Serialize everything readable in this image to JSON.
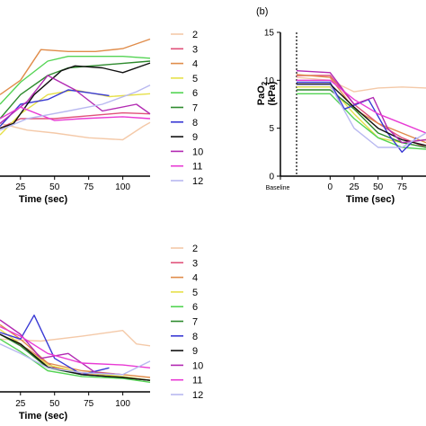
{
  "series_colors": {
    "2": "#f4c9a8",
    "3": "#e0507a",
    "4": "#e08c4a",
    "5": "#e6e04a",
    "6": "#54d454",
    "7": "#2e8a2e",
    "8": "#3a3ad4",
    "9": "#111111",
    "10": "#b22ab2",
    "11": "#e83ad4",
    "12": "#b8b8f0"
  },
  "chart_data": [
    {
      "type": "line",
      "panel": "top-left",
      "xlabel": "Time (sec)",
      "xticks": [
        "25",
        "50",
        "75",
        "100"
      ],
      "xlim": [
        10,
        120
      ],
      "ylim": [
        0,
        15
      ],
      "legend": [
        "2",
        "3",
        "4",
        "5",
        "6",
        "7",
        "8",
        "9",
        "10",
        "11",
        "12"
      ],
      "legend_position": "right",
      "series": [
        {
          "name": "2",
          "x": [
            10,
            30,
            50,
            75,
            100,
            115,
            120
          ],
          "y": [
            5.5,
            4.8,
            4.5,
            4.0,
            3.8,
            5.2,
            5.6
          ]
        },
        {
          "name": "3",
          "x": [
            10,
            25,
            50,
            75,
            100,
            120
          ],
          "y": [
            5.0,
            6.0,
            6.0,
            6.3,
            6.6,
            6.5
          ]
        },
        {
          "name": "4",
          "x": [
            10,
            25,
            40,
            60,
            80,
            100,
            120
          ],
          "y": [
            8.5,
            10.0,
            13.2,
            13.0,
            13.0,
            13.3,
            14.3
          ]
        },
        {
          "name": "5",
          "x": [
            10,
            25,
            45,
            65,
            90,
            120
          ],
          "y": [
            4.3,
            6.5,
            8.5,
            9.0,
            8.3,
            8.6
          ]
        },
        {
          "name": "6",
          "x": [
            10,
            25,
            45,
            60,
            75,
            100,
            120
          ],
          "y": [
            7.5,
            9.8,
            12.0,
            12.5,
            12.5,
            12.5,
            12.3
          ]
        },
        {
          "name": "7",
          "x": [
            10,
            25,
            45,
            60,
            120
          ],
          "y": [
            6.0,
            8.5,
            10.5,
            11.3,
            12.0
          ]
        },
        {
          "name": "8",
          "x": [
            10,
            25,
            45,
            60,
            75,
            90
          ],
          "y": [
            5.2,
            7.5,
            8.0,
            9.0,
            8.7,
            8.4
          ]
        },
        {
          "name": "9",
          "x": [
            10,
            20,
            35,
            55,
            65,
            85,
            100,
            120
          ],
          "y": [
            5.0,
            5.5,
            8.5,
            11.0,
            11.5,
            11.3,
            10.8,
            11.8
          ]
        },
        {
          "name": "10",
          "x": [
            10,
            30,
            45,
            65,
            85,
            110,
            120
          ],
          "y": [
            5.5,
            7.8,
            10.5,
            9.0,
            6.8,
            7.5,
            6.5
          ]
        },
        {
          "name": "11",
          "x": [
            10,
            25,
            50,
            70,
            100,
            120
          ],
          "y": [
            6.0,
            7.2,
            5.8,
            6.0,
            6.2,
            6.0
          ]
        },
        {
          "name": "12",
          "x": [
            10,
            30,
            60,
            85,
            110,
            120
          ],
          "y": [
            4.8,
            6.0,
            6.8,
            7.5,
            8.8,
            9.5
          ]
        }
      ]
    },
    {
      "type": "line",
      "panel": "top-right",
      "panel_label": "(b)",
      "ylabel": "PaO",
      "ylabel_subscript": "2",
      "ylabel_unit": "(kPa)",
      "xlabel": "Time (sec)",
      "xticks": [
        "Baseline",
        "0",
        "25",
        "50",
        "75"
      ],
      "yticks": [
        "0",
        "5",
        "10",
        "15"
      ],
      "xlim": [
        -35,
        100
      ],
      "ylim": [
        0,
        15
      ],
      "baseline_marker_x": 0,
      "series": [
        {
          "name": "2",
          "x": [
            -35,
            0,
            25,
            50,
            75,
            100
          ],
          "y": [
            10.3,
            10.0,
            8.8,
            9.2,
            9.3,
            9.2
          ]
        },
        {
          "name": "3",
          "x": [
            -35,
            0,
            25,
            50,
            75,
            100
          ],
          "y": [
            10.5,
            10.5,
            7.5,
            5.5,
            4.0,
            3.0
          ]
        },
        {
          "name": "4",
          "x": [
            -35,
            0,
            25,
            50,
            75,
            100
          ],
          "y": [
            10.6,
            10.3,
            7.0,
            5.5,
            4.5,
            3.5
          ]
        },
        {
          "name": "5",
          "x": [
            -35,
            0,
            25,
            50,
            75,
            100
          ],
          "y": [
            9.3,
            9.3,
            6.5,
            4.0,
            3.5,
            3.8
          ]
        },
        {
          "name": "6",
          "x": [
            -35,
            0,
            25,
            50,
            75,
            100
          ],
          "y": [
            8.6,
            8.6,
            6.0,
            4.0,
            3.0,
            2.8
          ]
        },
        {
          "name": "7",
          "x": [
            -35,
            0,
            25,
            50,
            75,
            100
          ],
          "y": [
            9.0,
            9.0,
            7.0,
            4.5,
            3.5,
            3.0
          ]
        },
        {
          "name": "8",
          "x": [
            -35,
            0,
            15,
            40,
            60,
            75,
            90
          ],
          "y": [
            9.8,
            9.8,
            7.0,
            8.0,
            4.5,
            2.5,
            4.0
          ]
        },
        {
          "name": "9",
          "x": [
            -35,
            0,
            25,
            50,
            75,
            100
          ],
          "y": [
            9.6,
            9.6,
            7.2,
            5.0,
            3.8,
            3.2
          ]
        },
        {
          "name": "10",
          "x": [
            -35,
            0,
            25,
            45,
            60,
            75,
            100
          ],
          "y": [
            11.0,
            10.8,
            7.5,
            8.2,
            5.0,
            3.5,
            3.8
          ]
        },
        {
          "name": "11",
          "x": [
            -35,
            0,
            25,
            50,
            75,
            100
          ],
          "y": [
            10.0,
            10.0,
            8.0,
            6.5,
            5.5,
            4.5
          ]
        },
        {
          "name": "12",
          "x": [
            -35,
            0,
            25,
            50,
            75,
            100
          ],
          "y": [
            9.5,
            9.5,
            5.0,
            3.0,
            3.0,
            4.5
          ]
        }
      ]
    },
    {
      "type": "line",
      "panel": "bottom-left",
      "xlabel": "Time (sec)",
      "xticks": [
        "25",
        "50",
        "75",
        "100"
      ],
      "xlim": [
        10,
        120
      ],
      "ylim": [
        0,
        15
      ],
      "legend": [
        "2",
        "3",
        "4",
        "5",
        "6",
        "7",
        "8",
        "9",
        "10",
        "11",
        "12"
      ],
      "legend_position": "right",
      "series": [
        {
          "name": "2",
          "x": [
            10,
            40,
            70,
            100,
            110,
            120
          ],
          "y": [
            5.5,
            5.3,
            5.8,
            6.4,
            5.0,
            4.8
          ]
        },
        {
          "name": "3",
          "x": [
            10,
            30,
            50,
            75,
            100,
            120
          ],
          "y": [
            6.0,
            4.5,
            2.5,
            1.8,
            1.5,
            1.2
          ]
        },
        {
          "name": "4",
          "x": [
            10,
            25,
            45,
            70,
            100,
            120
          ],
          "y": [
            7.0,
            5.5,
            3.0,
            2.2,
            1.8,
            1.5
          ]
        },
        {
          "name": "5",
          "x": [
            10,
            25,
            45,
            70,
            100,
            120
          ],
          "y": [
            6.5,
            5.0,
            2.8,
            2.0,
            1.6,
            1.2
          ]
        },
        {
          "name": "6",
          "x": [
            10,
            25,
            45,
            70,
            100,
            120
          ],
          "y": [
            5.5,
            4.2,
            2.2,
            1.6,
            1.4,
            1.0
          ]
        },
        {
          "name": "7",
          "x": [
            10,
            25,
            45,
            70,
            100,
            120
          ],
          "y": [
            6.0,
            4.8,
            2.5,
            1.8,
            1.5,
            1.2
          ]
        },
        {
          "name": "8",
          "x": [
            10,
            25,
            35,
            50,
            70,
            90
          ],
          "y": [
            6.2,
            5.5,
            8.0,
            3.5,
            1.8,
            2.5
          ]
        },
        {
          "name": "9",
          "x": [
            10,
            25,
            45,
            70,
            100,
            120
          ],
          "y": [
            6.0,
            5.0,
            2.6,
            1.8,
            1.5,
            1.2
          ]
        },
        {
          "name": "10",
          "x": [
            10,
            25,
            40,
            60,
            80,
            100
          ],
          "y": [
            7.5,
            6.0,
            3.5,
            4.0,
            2.0,
            1.8
          ]
        },
        {
          "name": "11",
          "x": [
            10,
            25,
            45,
            70,
            100,
            120
          ],
          "y": [
            6.8,
            5.8,
            4.0,
            3.0,
            2.8,
            2.5
          ]
        },
        {
          "name": "12",
          "x": [
            10,
            25,
            45,
            70,
            100,
            120
          ],
          "y": [
            5.0,
            4.0,
            2.5,
            2.0,
            1.8,
            3.2
          ]
        }
      ]
    }
  ]
}
